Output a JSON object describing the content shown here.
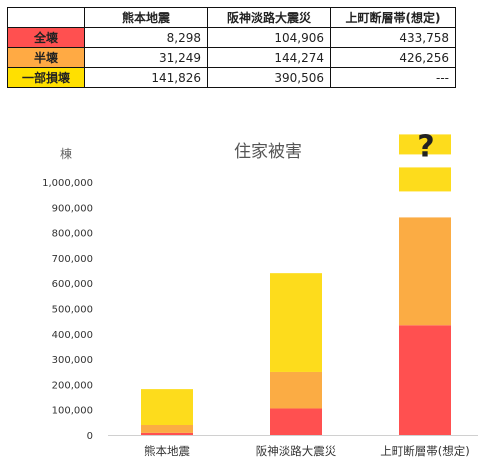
{
  "table": {
    "headers": [
      "熊本地震",
      "阪神淡路大震災",
      "上町断層帯(想定)"
    ],
    "rows": [
      {
        "label": "全壊",
        "color": "#ff5050",
        "values": [
          "8,298",
          "104,906",
          "433,758"
        ]
      },
      {
        "label": "半壊",
        "color": "#ffaa44",
        "values": [
          "31,249",
          "144,274",
          "426,256"
        ]
      },
      {
        "label": "一部損壊",
        "color": "#ffe000",
        "values": [
          "141,826",
          "390,506",
          "---"
        ]
      }
    ]
  },
  "chart_data": {
    "type": "bar",
    "stacked": true,
    "title": "住家被害",
    "ylabel": "棟",
    "categories": [
      "熊本地震",
      "阪神淡路大震災",
      "上町断層帯(想定)"
    ],
    "series": [
      {
        "name": "全壊",
        "color": "#ff5050",
        "values": [
          8298,
          104906,
          433758
        ]
      },
      {
        "name": "半壊",
        "color": "#fbac44",
        "values": [
          31249,
          144274,
          426256
        ]
      },
      {
        "name": "一部損壊",
        "color": "#fddc1c",
        "values": [
          141826,
          390506,
          null
        ]
      }
    ],
    "unknown_marker": "?",
    "ylim": [
      0,
      1000000
    ],
    "yticks": [
      "0",
      "100,000",
      "200,000",
      "300,000",
      "400,000",
      "500,000",
      "600,000",
      "700,000",
      "800,000",
      "900,000",
      "1,000,000"
    ],
    "grid": false,
    "legend": "none"
  }
}
